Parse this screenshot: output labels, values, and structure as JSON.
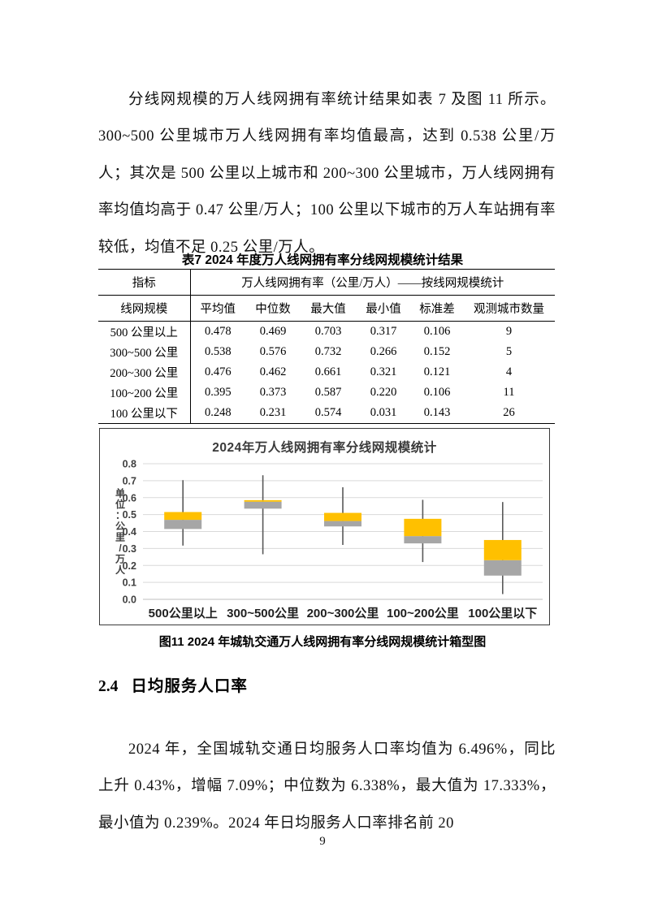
{
  "document": {
    "paragraph_1": "分线网规模的万人线网拥有率统计结果如表 7 及图 11 所示。300~500 公里城市万人线网拥有率均值最高，达到 0.538 公里/万人；其次是 500 公里以上城市和 200~300 公里城市，万人线网拥有率均值均高于 0.47 公里/万人；100 公里以下城市的万人车站拥有率较低，均值不足 0.25 公里/万人。",
    "section_heading": {
      "number": "2.4",
      "title": "日均服务人口率"
    },
    "paragraph_2": "2024 年，全国城轨交通日均服务人口率均值为 6.496%，同比上升 0.43%，增幅 7.09%；中位数为 6.338%，最大值为 17.333%，最小值为 0.239%。2024 年日均服务人口率排名前 20",
    "figure_caption": "图11  2024 年城轨交通万人线网拥有率分线网规模统计箱型图",
    "page_number": "9"
  },
  "table7": {
    "title": "表7  2024 年度万人线网拥有率分线网规模统计结果",
    "header_row_1": {
      "col1": "指标",
      "col2": "万人线网拥有率（公里/万人）——按线网规模统计"
    },
    "header_row_2": [
      "线网规模",
      "平均值",
      "中位数",
      "最大值",
      "最小值",
      "标准差",
      "观测城市数量"
    ],
    "rows": [
      [
        "500 公里以上",
        "0.478",
        "0.469",
        "0.703",
        "0.317",
        "0.106",
        "9"
      ],
      [
        "300~500 公里",
        "0.538",
        "0.576",
        "0.732",
        "0.266",
        "0.152",
        "5"
      ],
      [
        "200~300 公里",
        "0.476",
        "0.462",
        "0.661",
        "0.321",
        "0.121",
        "4"
      ],
      [
        "100~200 公里",
        "0.395",
        "0.373",
        "0.587",
        "0.220",
        "0.106",
        "11"
      ],
      [
        "100 公里以下",
        "0.248",
        "0.231",
        "0.574",
        "0.031",
        "0.143",
        "26"
      ]
    ]
  },
  "chart_data": {
    "type": "boxplot",
    "title": "2024年万人线网拥有率分线网规模统计",
    "ylabel": "单位：公里/万人",
    "xlabel": "",
    "ylim": [
      0.0,
      0.8
    ],
    "yticks": [
      0.0,
      0.1,
      0.2,
      0.3,
      0.4,
      0.5,
      0.6,
      0.7,
      0.8
    ],
    "grid": true,
    "legend": false,
    "categories": [
      "500公里以上",
      "300~500公里",
      "200~300公里",
      "100~200公里",
      "100公里以下"
    ],
    "series": [
      {
        "category": "500公里以上",
        "min": 0.317,
        "q1": 0.415,
        "median": 0.469,
        "q3": 0.515,
        "max": 0.703
      },
      {
        "category": "300~500公里",
        "min": 0.266,
        "q1": 0.535,
        "median": 0.576,
        "q3": 0.585,
        "max": 0.732
      },
      {
        "category": "200~300公里",
        "min": 0.321,
        "q1": 0.43,
        "median": 0.462,
        "q3": 0.51,
        "max": 0.661
      },
      {
        "category": "100~200公里",
        "min": 0.22,
        "q1": 0.33,
        "median": 0.373,
        "q3": 0.475,
        "max": 0.587
      },
      {
        "category": "100公里以下",
        "min": 0.031,
        "q1": 0.14,
        "median": 0.231,
        "q3": 0.35,
        "max": 0.574
      }
    ],
    "colors": {
      "upper_box": "#FFC000",
      "lower_box": "#A6A6A6",
      "whisker": "#595959",
      "gridline": "#D9D9D9",
      "axis": "#BFBFBF",
      "text": "#3f3f3f"
    }
  }
}
